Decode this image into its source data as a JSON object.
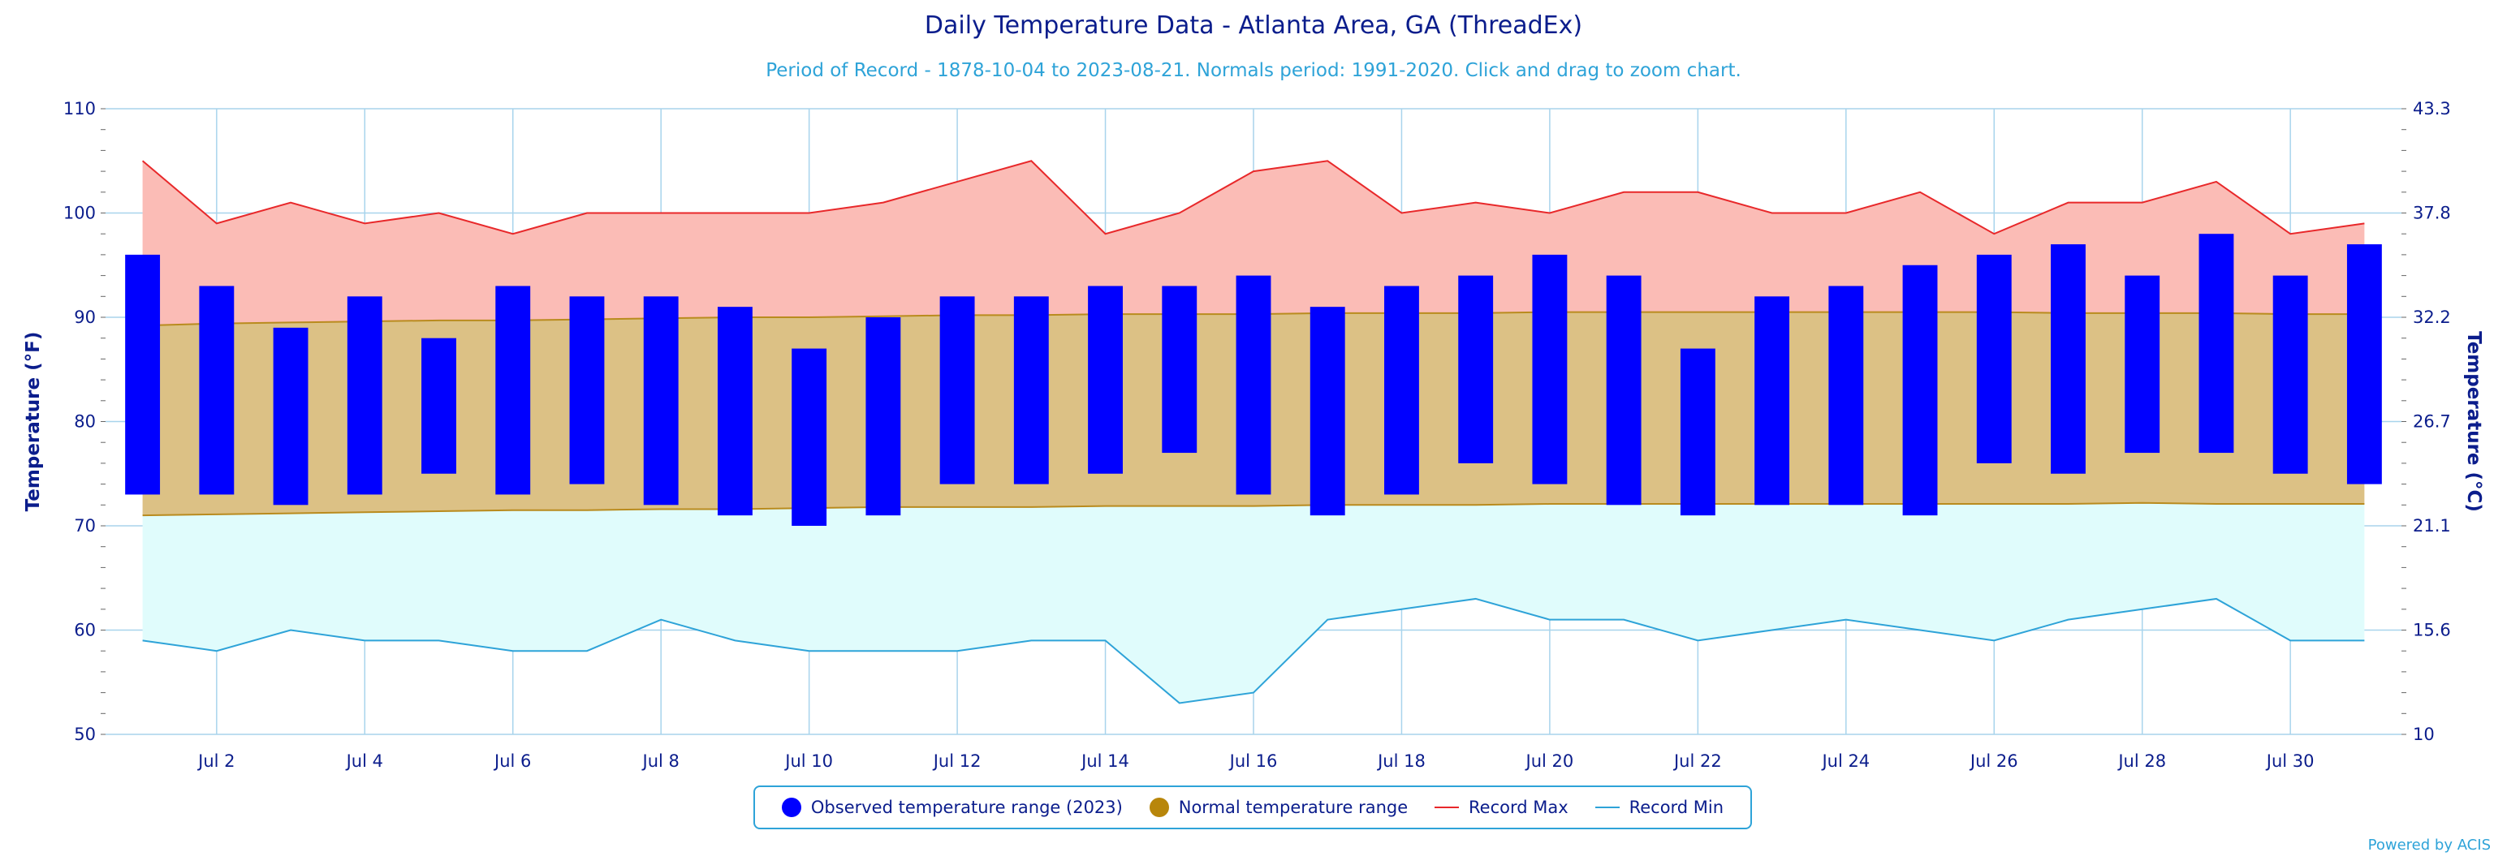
{
  "chart_data": {
    "type": "bar",
    "title": "Daily Temperature Data - Atlanta Area, GA (ThreadEx)",
    "subtitle": "Period of Record - 1878-10-04 to 2023-08-21. Normals period: 1991-2020. Click and drag to zoom chart.",
    "credit": "Powered by ACIS",
    "xlabel": "",
    "ylabel": "Temperature (°F)",
    "ylabel_right": "Temperature (°C)",
    "ylim": [
      50,
      110
    ],
    "yticks": [
      50,
      60,
      70,
      80,
      90,
      100,
      110
    ],
    "yticks_right": [
      "10",
      "15.6",
      "21.1",
      "26.7",
      "32.2",
      "37.8",
      "43.3"
    ],
    "x_tick_labels": [
      {
        "day": 2,
        "label": "Jul 2"
      },
      {
        "day": 4,
        "label": "Jul 4"
      },
      {
        "day": 6,
        "label": "Jul 6"
      },
      {
        "day": 8,
        "label": "Jul 8"
      },
      {
        "day": 10,
        "label": "Jul 10"
      },
      {
        "day": 12,
        "label": "Jul 12"
      },
      {
        "day": 14,
        "label": "Jul 14"
      },
      {
        "day": 16,
        "label": "Jul 16"
      },
      {
        "day": 18,
        "label": "Jul 18"
      },
      {
        "day": 20,
        "label": "Jul 20"
      },
      {
        "day": 22,
        "label": "Jul 22"
      },
      {
        "day": 24,
        "label": "Jul 24"
      },
      {
        "day": 26,
        "label": "Jul 26"
      },
      {
        "day": 28,
        "label": "Jul 28"
      },
      {
        "day": 30,
        "label": "Jul 30"
      }
    ],
    "days": [
      1,
      2,
      3,
      4,
      5,
      6,
      7,
      8,
      9,
      10,
      11,
      12,
      13,
      14,
      15,
      16,
      17,
      18,
      19,
      20,
      21,
      22,
      23,
      24,
      25,
      26,
      27,
      28,
      29,
      30,
      31
    ],
    "observed_high": [
      96,
      93,
      89,
      92,
      88,
      93,
      92,
      92,
      91,
      87,
      90,
      92,
      92,
      93,
      93,
      94,
      91,
      93,
      94,
      96,
      94,
      87,
      92,
      93,
      95,
      96,
      97,
      94,
      98,
      94,
      97
    ],
    "observed_low": [
      73,
      73,
      72,
      73,
      75,
      73,
      74,
      72,
      71,
      70,
      71,
      74,
      74,
      75,
      77,
      73,
      71,
      73,
      76,
      74,
      72,
      71,
      72,
      72,
      71,
      76,
      75,
      77,
      77,
      75,
      74
    ],
    "normal_high": [
      89.2,
      89.4,
      89.5,
      89.6,
      89.7,
      89.7,
      89.8,
      89.9,
      90.0,
      90.0,
      90.1,
      90.2,
      90.2,
      90.3,
      90.3,
      90.3,
      90.4,
      90.4,
      90.4,
      90.5,
      90.5,
      90.5,
      90.5,
      90.5,
      90.5,
      90.5,
      90.4,
      90.4,
      90.4,
      90.3,
      90.3
    ],
    "normal_low": [
      71.0,
      71.1,
      71.2,
      71.3,
      71.4,
      71.5,
      71.5,
      71.6,
      71.6,
      71.7,
      71.8,
      71.8,
      71.8,
      71.9,
      71.9,
      71.9,
      72.0,
      72.0,
      72.0,
      72.1,
      72.1,
      72.1,
      72.1,
      72.1,
      72.1,
      72.1,
      72.1,
      72.2,
      72.1,
      72.1,
      72.1
    ],
    "record_max": [
      105,
      99,
      101,
      99,
      100,
      98,
      100,
      100,
      100,
      100,
      101,
      103,
      105,
      98,
      100,
      104,
      105,
      100,
      101,
      100,
      102,
      102,
      100,
      100,
      102,
      98,
      101,
      101,
      103,
      98,
      99
    ],
    "record_min": [
      59,
      58,
      60,
      59,
      59,
      58,
      58,
      61,
      59,
      58,
      58,
      58,
      59,
      59,
      53,
      54,
      61,
      62,
      63,
      61,
      61,
      59,
      60,
      61,
      60,
      59,
      61,
      62,
      63,
      59,
      59
    ],
    "grid": true,
    "legend_position": "bottom-center",
    "colors": {
      "observed": "#0000ff",
      "normal_fill": "#dcc185",
      "normal_line": "#b98b1e",
      "normal_marker": "#b8860b",
      "record_max_line": "#e8282a",
      "record_max_fill": "#fbbcb6",
      "record_min_line": "#2ea3d8",
      "record_min_fill": "#e0fcfc",
      "grid": "#a8d4ec",
      "text": "#0b1d8c"
    }
  },
  "legend": {
    "observed": "Observed temperature range (2023)",
    "normal": "Normal temperature range",
    "record_max": "Record Max",
    "record_min": "Record Min"
  }
}
